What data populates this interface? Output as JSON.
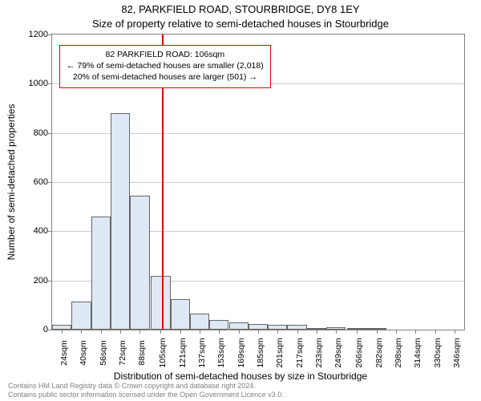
{
  "title_main": "82, PARKFIELD ROAD, STOURBRIDGE, DY8 1EY",
  "title_sub": "Size of property relative to semi-detached houses in Stourbridge",
  "xlabel": "Distribution of semi-detached houses by size in Stourbridge",
  "ylabel": "Number of semi-detached properties",
  "credits_line1": "Contains HM Land Registry data © Crown copyright and database right 2024.",
  "credits_line2": "Contains public sector information licensed under the Open Government Licence v3.0.",
  "annotation": {
    "line1": "82 PARKFIELD ROAD: 106sqm",
    "line2": "← 79% of semi-detached houses are smaller (2,018)",
    "line3": "20% of semi-detached houses are larger (501) →"
  },
  "chart": {
    "type": "histogram",
    "background_color": "#ffffff",
    "grid_color": "#cccccc",
    "axis_color": "#808080",
    "bar_fill": "#dfe9f5",
    "bar_border": "#666666",
    "marker_line_color": "#e60000",
    "marker_line_x": 106,
    "ylim": [
      0,
      1200
    ],
    "ytick_step": 200,
    "xlim": [
      16,
      354
    ],
    "bin_width": 16,
    "categories_labels": [
      "24sqm",
      "40sqm",
      "56sqm",
      "72sqm",
      "88sqm",
      "105sqm",
      "121sqm",
      "137sqm",
      "153sqm",
      "169sqm",
      "185sqm",
      "201sqm",
      "217sqm",
      "233sqm",
      "249sqm",
      "266sqm",
      "282sqm",
      "298sqm",
      "314sqm",
      "330sqm",
      "346sqm"
    ],
    "bin_centers": [
      24,
      40,
      56,
      72,
      88,
      105,
      121,
      137,
      153,
      169,
      185,
      201,
      217,
      233,
      249,
      266,
      282,
      298,
      314,
      330,
      346
    ],
    "values": [
      20,
      115,
      460,
      880,
      545,
      220,
      125,
      65,
      40,
      30,
      22,
      20,
      18,
      5,
      10,
      8,
      4,
      0,
      0,
      0,
      0
    ],
    "title_fontsize": 13,
    "label_fontsize": 12,
    "tick_fontsize": 11,
    "annotation_fontsize": 10.5,
    "annotation_border": "#e60000"
  }
}
